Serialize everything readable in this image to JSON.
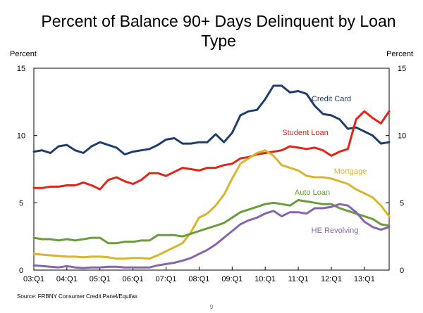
{
  "chart_data": {
    "type": "line",
    "title": "Percent of Balance 90+ Days Delinquent by Loan Type",
    "ylabel_left": "Percent",
    "ylabel_right": "Percent",
    "ylim": [
      0,
      15
    ],
    "yticks": [
      0,
      5,
      10,
      15
    ],
    "x_ticks": [
      "03:Q1",
      "04:Q1",
      "05:Q1",
      "06:Q1",
      "07:Q1",
      "08:Q1",
      "09:Q1",
      "10:Q1",
      "11:Q1",
      "12:Q1",
      "13:Q1"
    ],
    "x": [
      "03:Q1",
      "03:Q2",
      "03:Q3",
      "03:Q4",
      "04:Q1",
      "04:Q2",
      "04:Q3",
      "04:Q4",
      "05:Q1",
      "05:Q2",
      "05:Q3",
      "05:Q4",
      "06:Q1",
      "06:Q2",
      "06:Q3",
      "06:Q4",
      "07:Q1",
      "07:Q2",
      "07:Q3",
      "07:Q4",
      "08:Q1",
      "08:Q2",
      "08:Q3",
      "08:Q4",
      "09:Q1",
      "09:Q2",
      "09:Q3",
      "09:Q4",
      "10:Q1",
      "10:Q2",
      "10:Q3",
      "10:Q4",
      "11:Q1",
      "11:Q2",
      "11:Q3",
      "11:Q4",
      "12:Q1",
      "12:Q2",
      "12:Q3",
      "12:Q4",
      "13:Q1",
      "13:Q2",
      "13:Q3",
      "13:Q4"
    ],
    "series": [
      {
        "name": "Credit Card",
        "color": "#1f3e6e",
        "values": [
          8.8,
          8.9,
          8.7,
          9.2,
          9.3,
          8.9,
          8.7,
          9.2,
          9.5,
          9.3,
          9.1,
          8.6,
          8.8,
          8.9,
          9.0,
          9.3,
          9.7,
          9.8,
          9.4,
          9.4,
          9.5,
          9.5,
          10.1,
          9.5,
          10.2,
          11.5,
          11.8,
          11.9,
          12.7,
          13.7,
          13.7,
          13.2,
          13.3,
          13.1,
          12.2,
          11.6,
          11.5,
          11.2,
          10.5,
          10.6,
          10.3,
          10.0,
          9.4,
          9.5
        ]
      },
      {
        "name": "Student Loan",
        "color": "#e1251b",
        "values": [
          6.1,
          6.1,
          6.2,
          6.2,
          6.3,
          6.3,
          6.5,
          6.3,
          6.0,
          6.7,
          6.9,
          6.6,
          6.4,
          6.7,
          7.2,
          7.2,
          7.0,
          7.3,
          7.6,
          7.5,
          7.4,
          7.6,
          7.6,
          7.8,
          7.9,
          8.3,
          8.4,
          8.6,
          8.7,
          8.8,
          8.9,
          9.2,
          9.1,
          9.0,
          9.1,
          8.9,
          8.5,
          8.8,
          9.0,
          11.2,
          11.8,
          11.3,
          10.9,
          11.8
        ]
      },
      {
        "name": "Mortgage",
        "color": "#d9b42e",
        "values": [
          1.2,
          1.15,
          1.1,
          1.05,
          1.0,
          1.0,
          0.95,
          1.0,
          1.0,
          0.95,
          0.85,
          0.85,
          0.9,
          0.9,
          0.85,
          1.1,
          1.4,
          1.7,
          2.0,
          2.8,
          3.9,
          4.2,
          4.8,
          5.6,
          6.8,
          7.9,
          8.3,
          8.7,
          8.9,
          8.5,
          7.8,
          7.6,
          7.4,
          7.0,
          6.9,
          6.9,
          6.8,
          6.6,
          6.4,
          6.0,
          5.7,
          5.4,
          4.8,
          4.0
        ]
      },
      {
        "name": "Auto Loan",
        "color": "#6a9b3c",
        "values": [
          2.4,
          2.3,
          2.3,
          2.2,
          2.3,
          2.2,
          2.3,
          2.4,
          2.4,
          2.0,
          2.0,
          2.1,
          2.1,
          2.2,
          2.2,
          2.6,
          2.6,
          2.6,
          2.5,
          2.7,
          2.9,
          3.1,
          3.3,
          3.5,
          3.9,
          4.3,
          4.5,
          4.7,
          4.9,
          5.0,
          4.9,
          4.8,
          5.2,
          5.1,
          5.0,
          4.9,
          4.9,
          4.6,
          4.4,
          4.2,
          4.0,
          3.8,
          3.4,
          3.3
        ]
      },
      {
        "name": "HE Revolving",
        "color": "#8765ad",
        "values": [
          0.35,
          0.3,
          0.25,
          0.2,
          0.3,
          0.2,
          0.15,
          0.2,
          0.2,
          0.25,
          0.25,
          0.2,
          0.2,
          0.2,
          0.2,
          0.35,
          0.45,
          0.55,
          0.7,
          0.9,
          1.2,
          1.5,
          1.9,
          2.4,
          2.9,
          3.4,
          3.7,
          3.9,
          4.2,
          4.4,
          4.0,
          4.3,
          4.3,
          4.2,
          4.6,
          4.6,
          4.7,
          4.9,
          4.8,
          4.3,
          3.6,
          3.2,
          3.0,
          3.2
        ]
      }
    ]
  },
  "source": "Source: FRBNY Consumer Credit Panel/Equifax",
  "page_number": "9"
}
